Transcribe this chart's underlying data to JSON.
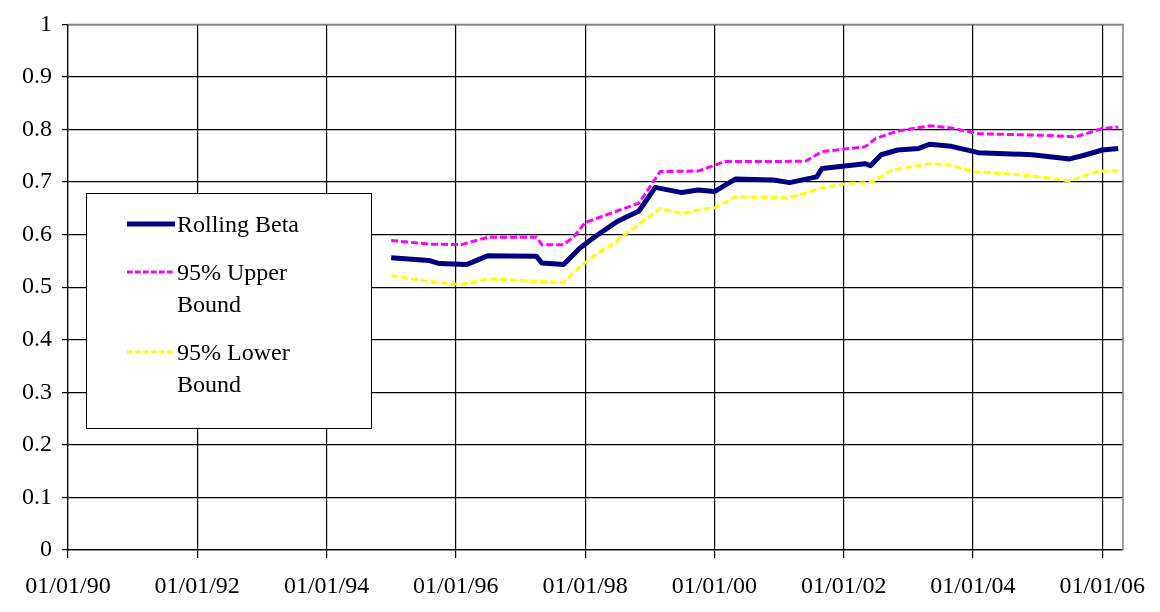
{
  "chart_data": {
    "type": "line",
    "xlim": [
      "1990-01-01",
      "2006-04-28"
    ],
    "xticks": [
      {
        "value": "1990-01-01",
        "label": "01/01/90"
      },
      {
        "value": "1992-01-01",
        "label": "01/01/92"
      },
      {
        "value": "1994-01-01",
        "label": "01/01/94"
      },
      {
        "value": "1996-01-01",
        "label": "01/01/96"
      },
      {
        "value": "1998-01-01",
        "label": "01/01/98"
      },
      {
        "value": "2000-01-01",
        "label": "01/01/00"
      },
      {
        "value": "2002-01-01",
        "label": "01/01/02"
      },
      {
        "value": "2004-01-01",
        "label": "01/01/04"
      },
      {
        "value": "2006-01-01",
        "label": "01/01/06"
      }
    ],
    "ylim": [
      0,
      1
    ],
    "yticks": [
      0,
      0.1,
      0.2,
      0.3,
      0.4,
      0.5,
      0.6,
      0.7,
      0.8,
      0.9,
      1
    ],
    "grid": true,
    "legend": "left",
    "marker": "none",
    "series": [
      {
        "name": "Rolling Beta",
        "color": "#000080",
        "line_style": "solid",
        "x": [
          "1995-01",
          "1995-08",
          "1995-10",
          "1996-03",
          "1996-07",
          "1997-04",
          "1997-05",
          "1997-09",
          "1997-12",
          "1998-03",
          "1998-07",
          "1998-11",
          "1999-02",
          "1999-07",
          "1999-10",
          "2000-01",
          "2000-05",
          "2000-12",
          "2001-03",
          "2001-08",
          "2001-09",
          "2002-05",
          "2002-06",
          "2002-08",
          "2002-11",
          "2003-03",
          "2003-05",
          "2003-09",
          "2004-02",
          "2004-12",
          "2005-07",
          "2005-10",
          "2006-01",
          "2006-04"
        ],
        "values": [
          0.556,
          0.551,
          0.545,
          0.543,
          0.56,
          0.559,
          0.546,
          0.543,
          0.574,
          0.597,
          0.625,
          0.645,
          0.69,
          0.68,
          0.685,
          0.682,
          0.706,
          0.704,
          0.699,
          0.71,
          0.726,
          0.735,
          0.731,
          0.752,
          0.761,
          0.764,
          0.772,
          0.768,
          0.756,
          0.752,
          0.744,
          0.752,
          0.761,
          0.764
        ]
      },
      {
        "name": "95% Upper Bound",
        "color": "#ff00ff",
        "line_style": "dashed",
        "x": [
          "1995-01",
          "1995-08",
          "1996-02",
          "1996-07",
          "1997-04",
          "1997-05",
          "1997-09",
          "1997-11",
          "1998-01",
          "1998-11",
          "1999-03",
          "1999-10",
          "2000-03",
          "2001-01",
          "2001-06",
          "2001-09",
          "2002-05",
          "2002-07",
          "2002-11",
          "2003-05",
          "2003-09",
          "2004-02",
          "2005-02",
          "2005-08",
          "2005-10",
          "2006-01",
          "2006-04"
        ],
        "values": [
          0.589,
          0.582,
          0.581,
          0.595,
          0.595,
          0.581,
          0.581,
          0.597,
          0.623,
          0.66,
          0.72,
          0.721,
          0.739,
          0.739,
          0.74,
          0.758,
          0.767,
          0.783,
          0.797,
          0.807,
          0.803,
          0.792,
          0.789,
          0.786,
          0.792,
          0.802,
          0.805
        ]
      },
      {
        "name": "95% Lower Bound",
        "color": "#ffff00",
        "line_style": "dashed",
        "x": [
          "1995-01",
          "1995-08",
          "1996-02",
          "1996-07",
          "1997-04",
          "1997-09",
          "1997-11",
          "1998-03",
          "1998-06",
          "1998-11",
          "1999-03",
          "1999-07",
          "1999-10",
          "2000-01",
          "2000-05",
          "2001-03",
          "2001-09",
          "2002-02",
          "2002-06",
          "2002-10",
          "2003-05",
          "2003-09",
          "2004-01",
          "2004-12",
          "2005-07",
          "2005-12",
          "2006-04"
        ],
        "values": [
          0.522,
          0.511,
          0.505,
          0.516,
          0.511,
          0.509,
          0.53,
          0.562,
          0.581,
          0.62,
          0.65,
          0.64,
          0.647,
          0.651,
          0.672,
          0.67,
          0.689,
          0.698,
          0.699,
          0.723,
          0.735,
          0.732,
          0.72,
          0.712,
          0.702,
          0.72,
          0.722
        ]
      }
    ]
  }
}
